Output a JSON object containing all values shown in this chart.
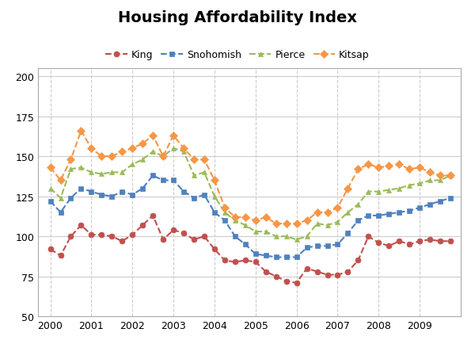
{
  "title": "Housing Affordability Index",
  "legend_entries": [
    "King",
    "Snohomish",
    "Pierce",
    "Kitsap"
  ],
  "colors": {
    "King": "#C0504D",
    "Snohomish": "#4F81BD",
    "Pierce": "#9BBB59",
    "Kitsap": "#F79646"
  },
  "markers": {
    "King": "o",
    "Snohomish": "s",
    "Pierce": "^",
    "Kitsap": "D"
  },
  "ylim": [
    50,
    205
  ],
  "yticks": [
    50,
    75,
    100,
    125,
    150,
    175,
    200
  ],
  "grid_color": "#CCCCCC",
  "background_color": "#FFFFFF",
  "King": [
    92,
    88,
    100,
    107,
    101,
    101,
    100,
    97,
    101,
    107,
    113,
    98,
    104,
    102,
    98,
    100,
    92,
    85,
    84,
    85,
    84,
    78,
    75,
    72,
    71,
    80,
    78,
    76,
    76,
    78,
    85,
    100,
    96,
    94,
    97,
    95,
    97,
    98,
    97,
    97
  ],
  "Snohomish": [
    122,
    115,
    124,
    130,
    128,
    126,
    125,
    128,
    126,
    130,
    138,
    135,
    135,
    128,
    124,
    126,
    115,
    110,
    100,
    95,
    89,
    88,
    87,
    87,
    87,
    93,
    94,
    94,
    95,
    102,
    110,
    113,
    113,
    114,
    115,
    116,
    118,
    120,
    122,
    124
  ],
  "Pierce": [
    130,
    124,
    142,
    143,
    140,
    139,
    140,
    140,
    145,
    148,
    153,
    150,
    155,
    153,
    138,
    140,
    125,
    115,
    110,
    107,
    103,
    103,
    100,
    100,
    98,
    100,
    108,
    107,
    109,
    115,
    120,
    128,
    128,
    129,
    130,
    132,
    133,
    135,
    135,
    138
  ],
  "Kitsap": [
    143,
    135,
    148,
    166,
    155,
    150,
    150,
    153,
    155,
    158,
    163,
    150,
    163,
    155,
    148,
    148,
    135,
    118,
    112,
    112,
    110,
    112,
    108,
    108,
    108,
    110,
    115,
    115,
    118,
    130,
    142,
    145,
    143,
    144,
    145,
    142,
    143,
    140,
    138,
    138
  ],
  "xlim_left": 1999.7,
  "xlim_right": 2010.0,
  "xticks": [
    2000,
    2001,
    2002,
    2003,
    2004,
    2005,
    2006,
    2007,
    2008,
    2009
  ],
  "n_points": 40,
  "x_start": 2000,
  "x_end": 2009.75
}
